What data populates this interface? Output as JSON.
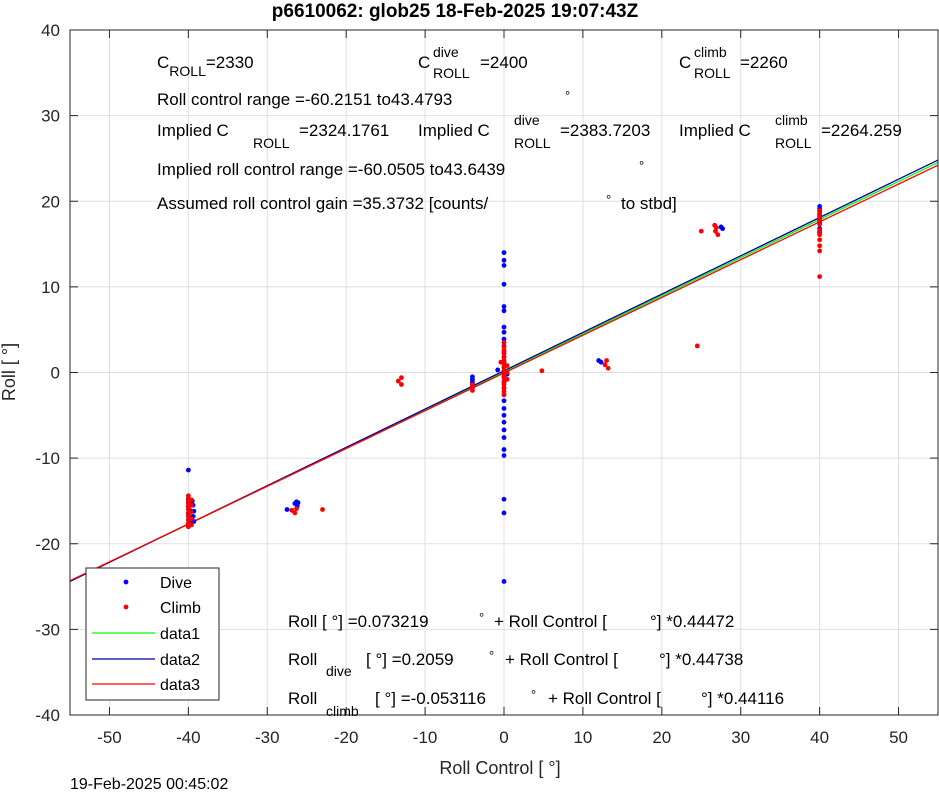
{
  "footer": {
    "timestamp": "19-Feb-2025 00:45:02"
  },
  "chart_data": {
    "type": "scatter",
    "title": "p6610062: glob25 18-Feb-2025 19:07:43Z",
    "xlabel": "Roll Control [   °]",
    "ylabel": "Roll [  °]",
    "xlim": [
      -55,
      55
    ],
    "ylim": [
      -40,
      40
    ],
    "xticks": [
      -50,
      -40,
      -30,
      -20,
      -10,
      0,
      10,
      20,
      30,
      40,
      50
    ],
    "yticks": [
      -40,
      -30,
      -20,
      -10,
      0,
      10,
      20,
      30,
      40
    ],
    "grid": true,
    "legend_position": "bottom-left",
    "legend": [
      "Dive",
      "Climb",
      "data1",
      "data2",
      "data3"
    ],
    "colors": {
      "dive": "#0000ff",
      "climb": "#ff0000",
      "data1": "#00ff00",
      "data2": "#0000a0",
      "data3": "#ff0000",
      "axes": "#262626",
      "grid": "#dfdfdf"
    },
    "annotations": {
      "c_roll": "C",
      "c_roll_sub": "ROLL",
      "c_roll_val": "=2330",
      "c_dive": "C",
      "c_dive_sup": "dive",
      "c_dive_sub": "ROLL",
      "c_dive_val": "=2400",
      "c_climb": "C",
      "c_climb_sup": "climb",
      "c_climb_sub": "ROLL",
      "c_climb_val": "=2260",
      "range": "Roll control range =-60.2151 to43.4793",
      "range_deg": "°",
      "implied_1": "Implied C",
      "implied_1_sub": "ROLL",
      "implied_1_val": "=2324.1761",
      "implied_2": "Implied C",
      "implied_2_sup": "dive",
      "implied_2_sub": "ROLL",
      "implied_2_val": "=2383.7203",
      "implied_3": "Implied C",
      "implied_3_sup": "climb",
      "implied_3_sub": "ROLL",
      "implied_3_val": "=2264.259",
      "implied_range": "Implied roll control range =-60.0505 to43.6439",
      "implied_range_deg": "°",
      "gain": "Assumed roll control gain =35.3732 [counts/",
      "gain_deg": "°",
      "gain_end": "to stbd]",
      "fit_all_a": "Roll [  °] =0.073219",
      "fit_all_b": "°",
      "fit_all_c": "+ Roll Control [",
      "fit_all_d": "°] *0.44472",
      "fit_dive_a": "Roll",
      "fit_dive_sub": "dive",
      "fit_dive_b": "[  °] =0.2059",
      "fit_dive_c": "°",
      "fit_dive_d": "+ Roll Control [",
      "fit_dive_e": "°] *0.44738",
      "fit_climb_a": "Roll",
      "fit_climb_sub": "climb",
      "fit_climb_b": "[  °] =-0.053116",
      "fit_climb_c": "°",
      "fit_climb_d": "+ Roll Control [",
      "fit_climb_e": "°] *0.44116"
    },
    "fit_lines": [
      {
        "name": "data1",
        "intercept": 0.073219,
        "slope": 0.44472
      },
      {
        "name": "data2",
        "intercept": 0.2059,
        "slope": 0.44738
      },
      {
        "name": "data3",
        "intercept": -0.053116,
        "slope": 0.44116
      }
    ],
    "series": [
      {
        "name": "Dive",
        "points": [
          [
            -40,
            -11.4
          ],
          [
            -40,
            -14.8
          ],
          [
            -40,
            -15.2
          ],
          [
            -40,
            -15.6
          ],
          [
            -39.8,
            -16.1
          ],
          [
            -40,
            -16.5
          ],
          [
            -39.9,
            -16.9
          ],
          [
            -40,
            -17.2
          ],
          [
            -39.7,
            -17.6
          ],
          [
            -40,
            -18.0
          ],
          [
            -39.5,
            -15.0
          ],
          [
            -39.4,
            -15.5
          ],
          [
            -39.3,
            -16.2
          ],
          [
            -39.4,
            -16.8
          ],
          [
            -39.3,
            -17.4
          ],
          [
            -26.5,
            -15.3
          ],
          [
            -26.3,
            -15.1
          ],
          [
            -26.1,
            -15.2
          ],
          [
            -26.2,
            -15.6
          ],
          [
            -27.5,
            -16.0
          ],
          [
            -4,
            -0.5
          ],
          [
            -4,
            -0.8
          ],
          [
            -4,
            -1.1
          ],
          [
            -4,
            -1.3
          ],
          [
            -4,
            -1.6
          ],
          [
            0,
            14.0
          ],
          [
            0,
            13.1
          ],
          [
            0,
            12.5
          ],
          [
            0,
            10.3
          ],
          [
            0,
            7.7
          ],
          [
            0,
            7.2
          ],
          [
            0,
            5.3
          ],
          [
            0,
            4.7
          ],
          [
            0,
            3.9
          ],
          [
            0,
            3.1
          ],
          [
            0,
            2.4
          ],
          [
            0,
            1.8
          ],
          [
            0,
            1.2
          ],
          [
            0,
            0.6
          ],
          [
            0,
            0.1
          ],
          [
            0,
            -0.5
          ],
          [
            0,
            -1.2
          ],
          [
            0,
            -1.8
          ],
          [
            0,
            -2.6
          ],
          [
            0,
            -3.3
          ],
          [
            0,
            -4.2
          ],
          [
            0,
            -5.0
          ],
          [
            0,
            -5.8
          ],
          [
            0,
            -6.7
          ],
          [
            0,
            -7.6
          ],
          [
            0,
            -9.0
          ],
          [
            0,
            -9.7
          ],
          [
            0,
            -14.8
          ],
          [
            0,
            -16.4
          ],
          [
            0,
            -24.4
          ],
          [
            -0.8,
            0.3
          ],
          [
            0.4,
            -0.2
          ],
          [
            12,
            1.4
          ],
          [
            12.3,
            1.2
          ],
          [
            27.5,
            17.0
          ],
          [
            27.7,
            16.8
          ],
          [
            40,
            19.4
          ],
          [
            40,
            19.1
          ],
          [
            40,
            18.8
          ],
          [
            40,
            18.4
          ],
          [
            40,
            18.0
          ],
          [
            40,
            17.5
          ],
          [
            40,
            16.8
          ],
          [
            40,
            16.4
          ]
        ]
      },
      {
        "name": "Climb",
        "points": [
          [
            -40,
            -14.4
          ],
          [
            -40,
            -14.7
          ],
          [
            -40,
            -15.0
          ],
          [
            -40,
            -15.3
          ],
          [
            -40,
            -15.7
          ],
          [
            -40,
            -16.0
          ],
          [
            -40,
            -16.4
          ],
          [
            -40,
            -16.8
          ],
          [
            -40,
            -17.2
          ],
          [
            -40,
            -17.6
          ],
          [
            -40,
            -18.0
          ],
          [
            -39.6,
            -14.9
          ],
          [
            -39.6,
            -15.5
          ],
          [
            -39.7,
            -16.3
          ],
          [
            -39.6,
            -17.1
          ],
          [
            -39.6,
            -17.8
          ],
          [
            -26.3,
            -15.9
          ],
          [
            -26.5,
            -16.4
          ],
          [
            -26.9,
            -16.1
          ],
          [
            -23,
            -16.0
          ],
          [
            -13,
            -0.6
          ],
          [
            -13.4,
            -1.0
          ],
          [
            -13,
            -1.4
          ],
          [
            -4,
            -1.4
          ],
          [
            -4,
            -1.8
          ],
          [
            -4,
            -2.1
          ],
          [
            0,
            3.5
          ],
          [
            0,
            3.0
          ],
          [
            0,
            2.6
          ],
          [
            0,
            2.2
          ],
          [
            0,
            1.8
          ],
          [
            0,
            1.4
          ],
          [
            0,
            1.0
          ],
          [
            0,
            0.6
          ],
          [
            0,
            0.2
          ],
          [
            0,
            -0.2
          ],
          [
            0,
            -0.6
          ],
          [
            0,
            -1.0
          ],
          [
            0,
            -1.4
          ],
          [
            0,
            -1.8
          ],
          [
            0,
            -2.2
          ],
          [
            0,
            -2.6
          ],
          [
            0.4,
            0.8
          ],
          [
            0.4,
            0.0
          ],
          [
            0.4,
            -0.8
          ],
          [
            -0.4,
            1.2
          ],
          [
            4.8,
            0.2
          ],
          [
            13,
            1.4
          ],
          [
            12.8,
            0.9
          ],
          [
            13.2,
            0.5
          ],
          [
            24.5,
            3.1
          ],
          [
            25,
            16.5
          ],
          [
            26.7,
            17.2
          ],
          [
            26.9,
            16.9
          ],
          [
            26.8,
            16.5
          ],
          [
            27.1,
            16.1
          ],
          [
            40,
            18.9
          ],
          [
            40,
            18.5
          ],
          [
            40,
            18.2
          ],
          [
            40,
            17.8
          ],
          [
            40,
            17.3
          ],
          [
            40,
            16.6
          ],
          [
            40,
            16.1
          ],
          [
            40,
            15.5
          ],
          [
            40,
            14.8
          ],
          [
            40,
            14.2
          ],
          [
            40,
            11.2
          ]
        ]
      }
    ]
  }
}
